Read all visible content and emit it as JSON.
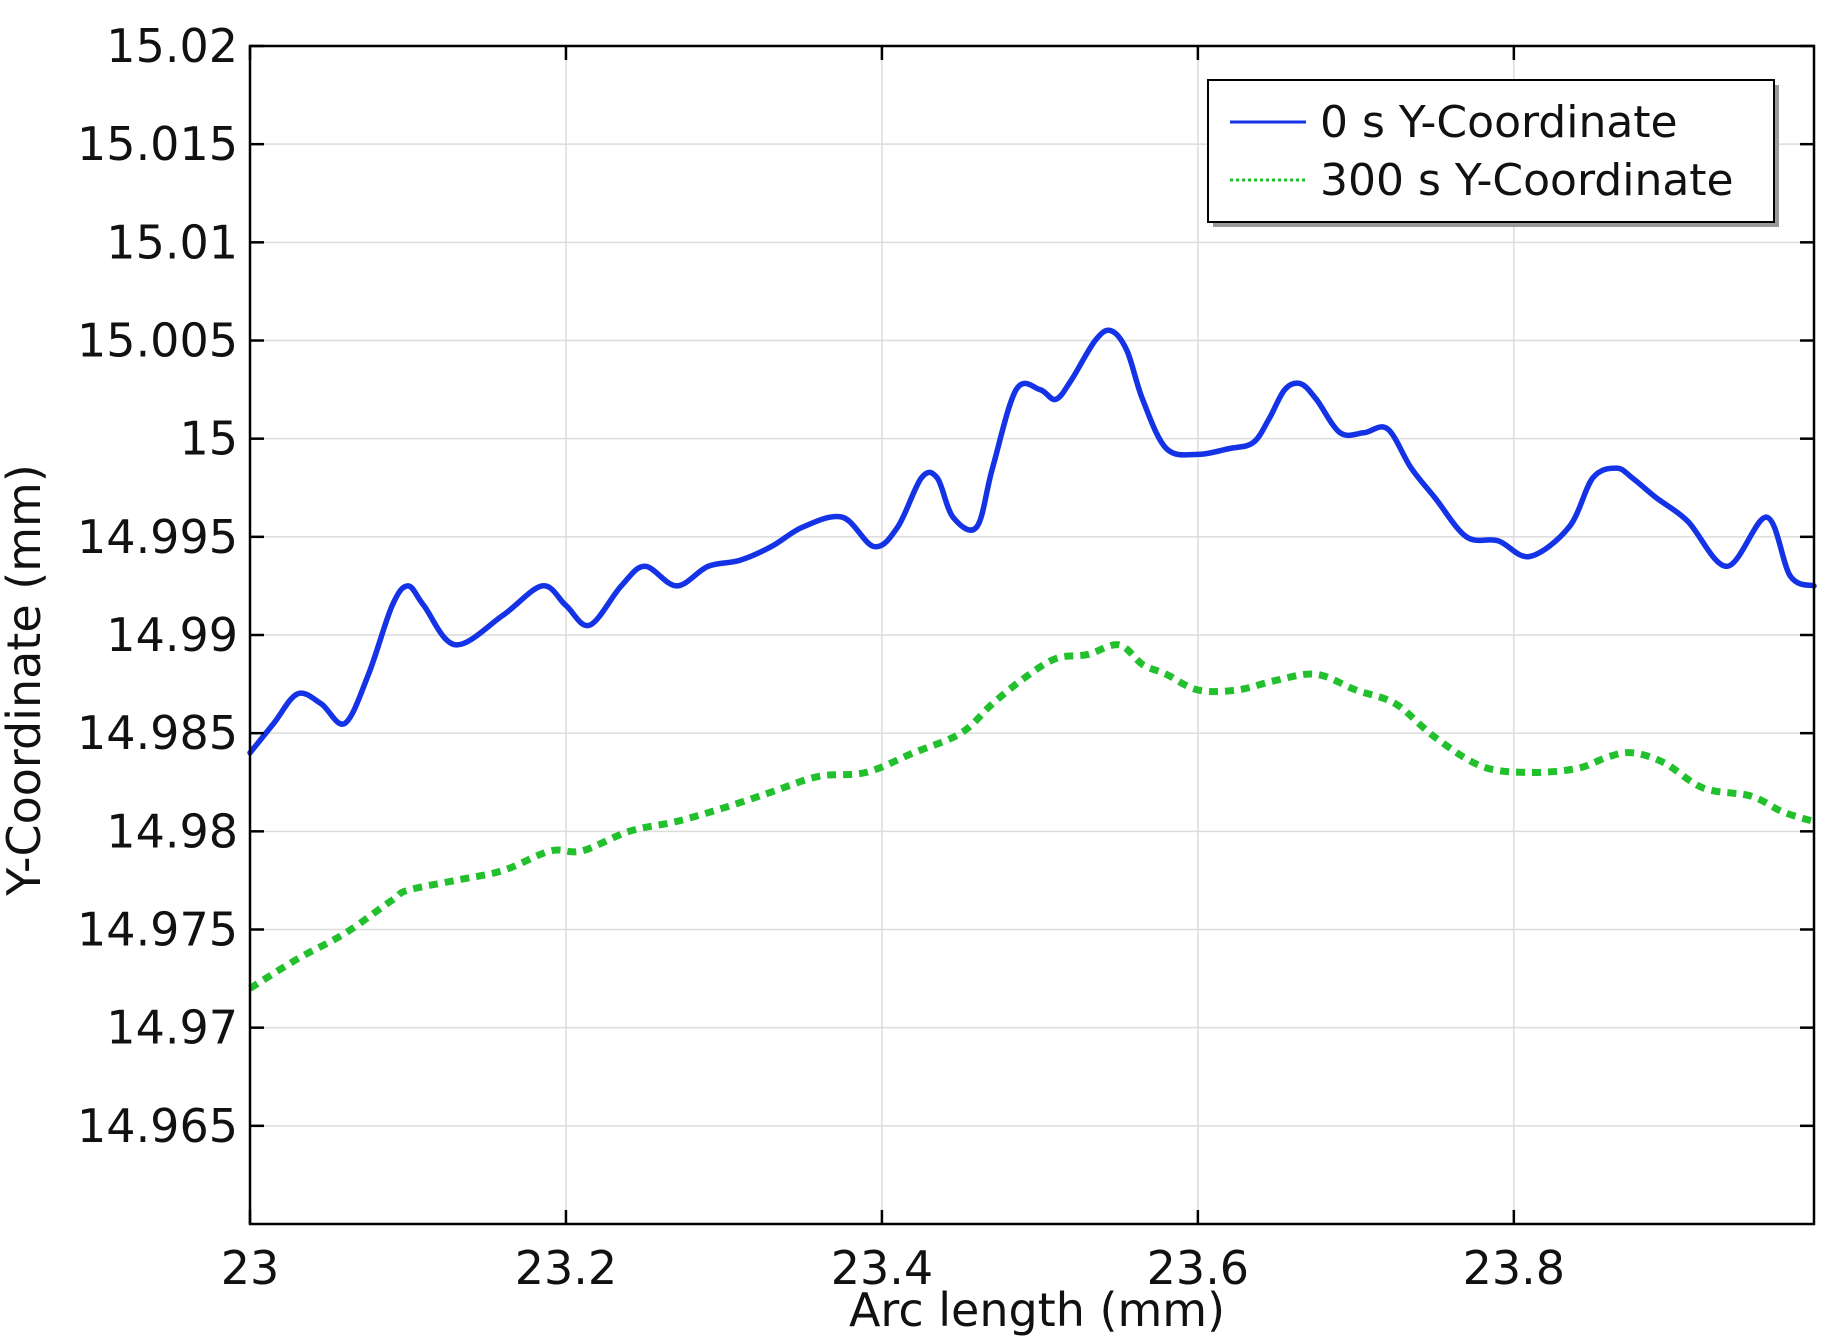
{
  "chart_data": {
    "type": "line",
    "title": "",
    "xlabel": "Arc length (mm)",
    "ylabel": "Y-Coordinate (mm)",
    "xlim": [
      23,
      23.99
    ],
    "ylim": [
      14.96,
      15.02
    ],
    "x_ticks": [
      23,
      23.2,
      23.4,
      23.6,
      23.8
    ],
    "x_tick_labels": [
      "23",
      "23.2",
      "23.4",
      "23.6",
      "23.8"
    ],
    "y_ticks": [
      14.965,
      14.97,
      14.975,
      14.98,
      14.985,
      14.99,
      14.995,
      15,
      15.005,
      15.01,
      15.015,
      15.02
    ],
    "y_tick_labels": [
      "14.965",
      "14.97",
      "14.975",
      "14.98",
      "14.985",
      "14.99",
      "14.995",
      "15",
      "15.005",
      "15.01",
      "15.015",
      "15.02"
    ],
    "grid": true,
    "legend_position": "top-right",
    "series": [
      {
        "name": "0 s Y-Coordinate",
        "color": "#1433e6",
        "style": "solid",
        "x": [
          23.0,
          23.015,
          23.03,
          23.045,
          23.06,
          23.075,
          23.09,
          23.1,
          23.11,
          23.13,
          23.16,
          23.185,
          23.2,
          23.215,
          23.235,
          23.25,
          23.27,
          23.29,
          23.31,
          23.33,
          23.35,
          23.375,
          23.395,
          23.41,
          23.425,
          23.435,
          23.445,
          23.46,
          23.47,
          23.485,
          23.5,
          23.51,
          23.52,
          23.535,
          23.545,
          23.555,
          23.565,
          23.58,
          23.6,
          23.62,
          23.635,
          23.645,
          23.655,
          23.665,
          23.675,
          23.69,
          23.705,
          23.72,
          23.735,
          23.75,
          23.77,
          23.79,
          23.81,
          23.835,
          23.85,
          23.865,
          23.875,
          23.89,
          23.91,
          23.935,
          23.96,
          23.975,
          23.99
        ],
        "y": [
          14.984,
          14.9855,
          14.987,
          14.9865,
          14.9855,
          14.988,
          14.9915,
          14.9925,
          14.9915,
          14.9895,
          14.991,
          14.9925,
          14.9915,
          14.9905,
          14.9925,
          14.9935,
          14.9925,
          14.9935,
          14.9938,
          14.9945,
          14.9955,
          14.996,
          14.9945,
          14.9955,
          14.998,
          14.998,
          14.996,
          14.9955,
          14.9985,
          15.0025,
          15.0025,
          15.002,
          15.003,
          15.005,
          15.0055,
          15.0045,
          15.002,
          14.9995,
          14.9992,
          14.9995,
          14.9998,
          15.001,
          15.0025,
          15.0028,
          15.002,
          15.0003,
          15.0003,
          15.0005,
          14.9985,
          14.997,
          14.995,
          14.9948,
          14.994,
          14.9955,
          14.998,
          14.9985,
          14.998,
          14.997,
          14.9958,
          14.9935,
          14.996,
          14.993,
          14.9925
        ]
      },
      {
        "name": "300 s Y-Coordinate",
        "color": "#22c02c",
        "style": "dotted",
        "x": [
          23.0,
          23.03,
          23.06,
          23.09,
          23.1,
          23.13,
          23.16,
          23.19,
          23.21,
          23.24,
          23.27,
          23.3,
          23.33,
          23.36,
          23.39,
          23.42,
          23.45,
          23.47,
          23.49,
          23.51,
          23.53,
          23.55,
          23.565,
          23.58,
          23.6,
          23.625,
          23.65,
          23.675,
          23.7,
          23.725,
          23.75,
          23.78,
          23.81,
          23.84,
          23.86,
          23.875,
          23.895,
          23.92,
          23.95,
          23.97,
          23.99
        ],
        "y": [
          14.972,
          14.9735,
          14.9748,
          14.9765,
          14.977,
          14.9775,
          14.978,
          14.979,
          14.979,
          14.98,
          14.9805,
          14.9812,
          14.982,
          14.9828,
          14.983,
          14.984,
          14.985,
          14.9865,
          14.9878,
          14.9888,
          14.989,
          14.9895,
          14.9885,
          14.988,
          14.9872,
          14.9872,
          14.9877,
          14.988,
          14.9872,
          14.9865,
          14.9848,
          14.9833,
          14.983,
          14.9832,
          14.9838,
          14.984,
          14.9835,
          14.9822,
          14.9818,
          14.981,
          14.9805
        ]
      }
    ]
  }
}
